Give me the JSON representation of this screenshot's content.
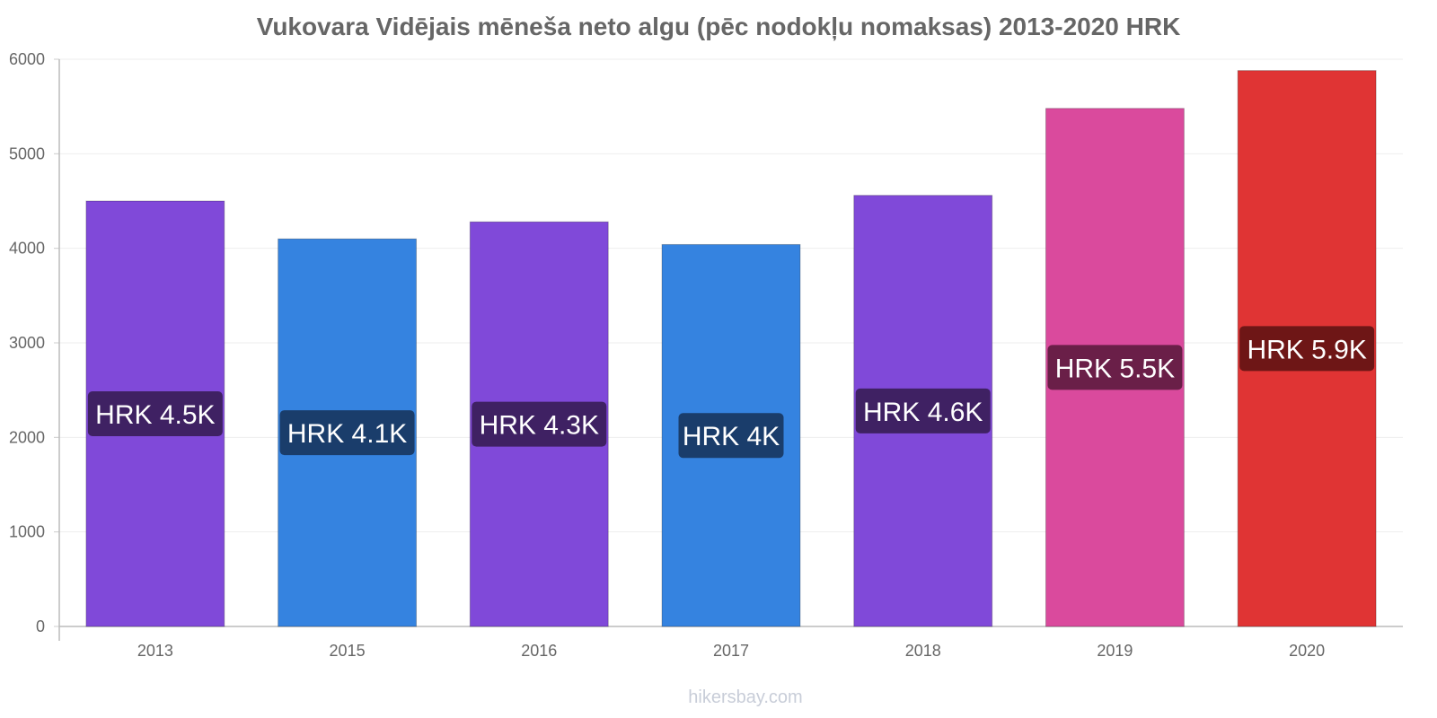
{
  "chart_data": {
    "type": "bar",
    "title": "Vukovara Vidējais mēneša neto algu (pēc nodokļu nomaksas) 2013-2020 HRK",
    "categories": [
      "2013",
      "2015",
      "2016",
      "2017",
      "2018",
      "2019",
      "2020"
    ],
    "values": [
      4500,
      4100,
      4280,
      4040,
      4560,
      5480,
      5880
    ],
    "data_labels": [
      "HRK 4.5K",
      "HRK 4.1K",
      "HRK 4.3K",
      "HRK 4K",
      "HRK 4.6K",
      "HRK 5.5K",
      "HRK 5.9K"
    ],
    "bar_colors": [
      "#8049d9",
      "#3583e0",
      "#8049d9",
      "#3583e0",
      "#8049d9",
      "#da4a9d",
      "#e03434"
    ],
    "label_bg_colors": [
      "#3f2163",
      "#1a3d6b",
      "#3f2163",
      "#1a3d6b",
      "#3f2163",
      "#6a1f48",
      "#6e1616"
    ],
    "ylim": [
      0,
      6000
    ],
    "yticks": [
      0,
      1000,
      2000,
      3000,
      4000,
      5000,
      6000
    ],
    "ytick_labels": [
      "0",
      "1000",
      "2000",
      "3000",
      "4000",
      "5000",
      "6000"
    ],
    "xlabel": "",
    "ylabel": "",
    "grid": true,
    "legend": "none"
  },
  "watermark": "hikersbay.com"
}
